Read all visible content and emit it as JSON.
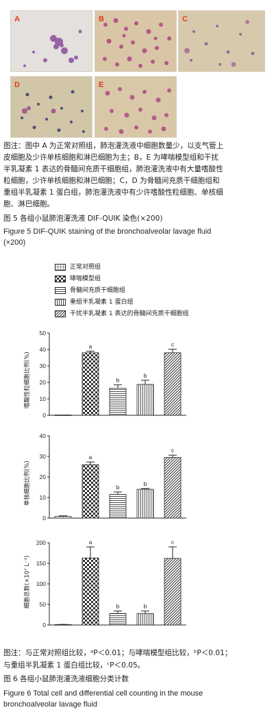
{
  "figure5": {
    "panels": [
      {
        "id": "A",
        "label": "A"
      },
      {
        "id": "B",
        "label": "B"
      },
      {
        "id": "C",
        "label": "C"
      },
      {
        "id": "D",
        "label": "D"
      },
      {
        "id": "E",
        "label": "E"
      }
    ],
    "note_lines": [
      "图注：图中 A 为正常对照组，肺泡灌洗液中细胞数量少，以支气管上",
      "皮细胞及少许单核细胞和淋巴细胞为主；B，E 为哮喘模型组和干扰",
      "半乳凝素 1 表达的骨髓间充质干细胞组，肺泡灌洗液中有大量嗜酸性",
      "粒细胞，少许单核细胞和淋巴细胞；C，D 为骨髓间充质干细胞组和",
      "重组半乳凝素 1 蛋白组，肺泡灌洗液中有少许嗜酸性粒细胞、单核细",
      "胞、淋巴细胞。"
    ],
    "caption_cn": "图 5   各组小鼠肺泡灌洗液 DIF-QUIK 染色(×200)",
    "caption_en_line1": "Figure 5   DIF-QUIK staining of the bronchoalveolar lavage fluid",
    "caption_en_line2": "(×200)"
  },
  "legend": [
    {
      "label": "正常对照组",
      "pattern": "grid"
    },
    {
      "label": "哮喘模型组",
      "pattern": "check"
    },
    {
      "label": "骨髓间充质干细胞组",
      "pattern": "hlines"
    },
    {
      "label": "重组半乳凝素 1 蛋白组",
      "pattern": "vlines"
    },
    {
      "label": "干扰半乳凝素 1 表达的骨髓间充质干细胞组",
      "pattern": "diag"
    }
  ],
  "chart_data": [
    {
      "type": "bar",
      "ylabel": "嗜酸性粒细胞比例(%)",
      "ylim": [
        0,
        50
      ],
      "yticks": [
        0,
        10,
        20,
        30,
        40,
        50
      ],
      "categories": [
        "正常对照组",
        "哮喘模型组",
        "骨髓间充质干细胞组",
        "重组半乳凝素 1 蛋白组",
        "干扰半乳凝素 1 表达的骨髓间充质干细胞组"
      ],
      "values": [
        0.2,
        38,
        16.5,
        18.8,
        38
      ],
      "errors": [
        0.1,
        1,
        2,
        2.5,
        2.2
      ],
      "annotations": [
        "",
        "a",
        "b",
        "b",
        "c"
      ]
    },
    {
      "type": "bar",
      "ylabel": "单核细胞比例(%)",
      "ylim": [
        0,
        40
      ],
      "yticks": [
        0,
        10,
        20,
        30,
        40
      ],
      "categories": [
        "正常对照组",
        "哮喘模型组",
        "骨髓间充质干细胞组",
        "重组半乳凝素 1 蛋白组",
        "干扰半乳凝素 1 表达的骨髓间充质干细胞组"
      ],
      "values": [
        0.8,
        26,
        11.5,
        14,
        29.5
      ],
      "errors": [
        0.3,
        1.3,
        1.2,
        0.4,
        1.1
      ],
      "annotations": [
        "",
        "a",
        "b",
        "b",
        "c"
      ]
    },
    {
      "type": "bar",
      "ylabel": "细胞总数(×10⁷ L⁻¹)",
      "ylim": [
        0,
        200
      ],
      "yticks": [
        0,
        50,
        100,
        150,
        200
      ],
      "categories": [
        "正常对照组",
        "哮喘模型组",
        "骨髓间充质干细胞组",
        "重组半乳凝素 1 蛋白组",
        "干扰半乳凝素 1 表达的骨髓间充质干细胞组"
      ],
      "values": [
        1,
        163,
        28,
        28,
        162
      ],
      "errors": [
        0.5,
        27,
        6,
        6,
        28
      ],
      "annotations": [
        "",
        "a",
        "b",
        "b",
        "c"
      ]
    }
  ],
  "figure6": {
    "note_line1": "图注：与正常对照组比较，ᵃP＜0.01；与哮喘模型组比较，ᵇP＜0.01；",
    "note_line2": "与重组半乳凝素 1 蛋白组比较，ᶜP＜0.05。",
    "caption_cn": "图 6   各组小鼠肺泡灌洗液细胞分类计数",
    "caption_en_line1": "Figure 6   Total cell and differential cell counting in the mouse",
    "caption_en_line2": "bronchoalveolar lavage fluid"
  }
}
